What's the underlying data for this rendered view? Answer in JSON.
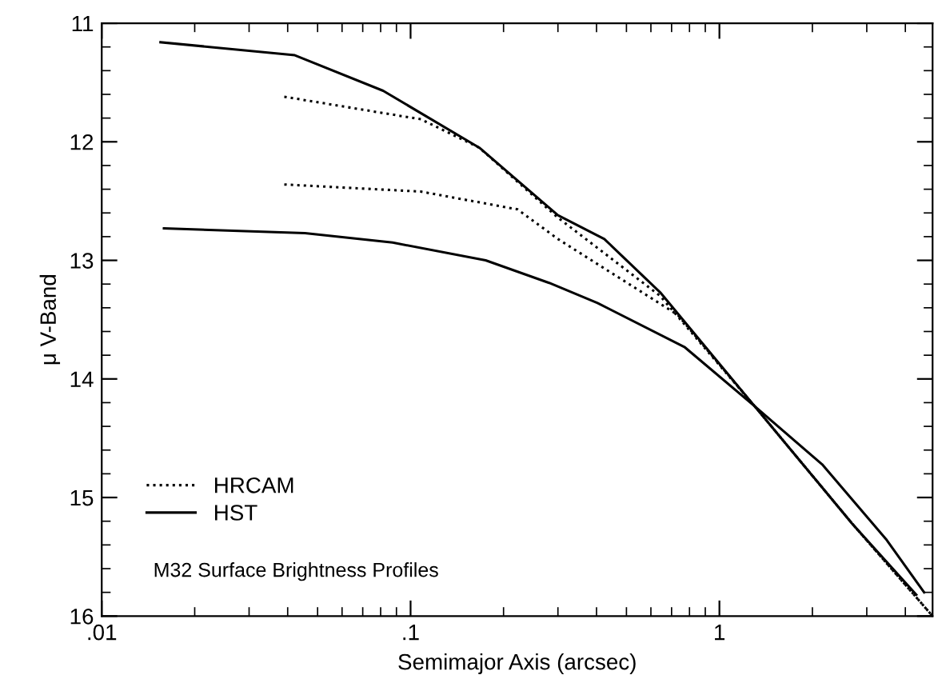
{
  "chart_data": {
    "type": "line",
    "xlabel": "Semimajor Axis (arcsec)",
    "ylabel": "μ V-Band",
    "log": "x",
    "xlim": [
      0.01,
      4.9
    ],
    "xticks": [
      {
        "value": 0.01,
        "label": ".01"
      },
      {
        "value": 0.1,
        "label": ".1"
      },
      1
    ],
    "ylim": [
      16,
      11
    ],
    "yticks": [
      11,
      12,
      13,
      14,
      15,
      16
    ],
    "grid": false,
    "legend": "bottom left",
    "annotations": [
      "M32 Surface Brightness Profiles"
    ],
    "series": [
      {
        "name": "HRCAM",
        "color": "#000000",
        "line_style": "dotted",
        "x": [
          0.039,
          0.108,
          0.167,
          0.3,
          0.643,
          1.3,
          2.69,
          4.9
        ],
        "values": [
          11.62,
          11.81,
          12.05,
          12.64,
          13.3,
          14.23,
          15.22,
          16.0
        ]
      },
      {
        "color": "#000000",
        "line_style": "dotted",
        "x": [
          0.039,
          0.108,
          0.222,
          0.3,
          0.733,
          1.3,
          2.69,
          4.9
        ],
        "values": [
          12.36,
          12.42,
          12.57,
          12.82,
          13.46,
          14.23,
          15.22,
          16.0
        ]
      },
      {
        "name": "HST",
        "color": "#000000",
        "line_style": "solid",
        "x": [
          0.0155,
          0.0422,
          0.0815,
          0.167,
          0.3,
          0.424,
          0.643,
          1.3,
          2.69,
          4.34
        ],
        "values": [
          11.16,
          11.27,
          11.57,
          12.05,
          12.62,
          12.82,
          13.27,
          14.23,
          15.22,
          15.82
        ]
      },
      {
        "color": "#000000",
        "line_style": "solid",
        "x": [
          0.0159,
          0.0455,
          0.0875,
          0.175,
          0.281,
          0.403,
          0.77,
          1.3,
          2.15,
          3.46,
          4.6
        ],
        "values": [
          12.73,
          12.77,
          12.85,
          13.0,
          13.19,
          13.36,
          13.73,
          14.23,
          14.72,
          15.35,
          15.8
        ]
      }
    ]
  }
}
